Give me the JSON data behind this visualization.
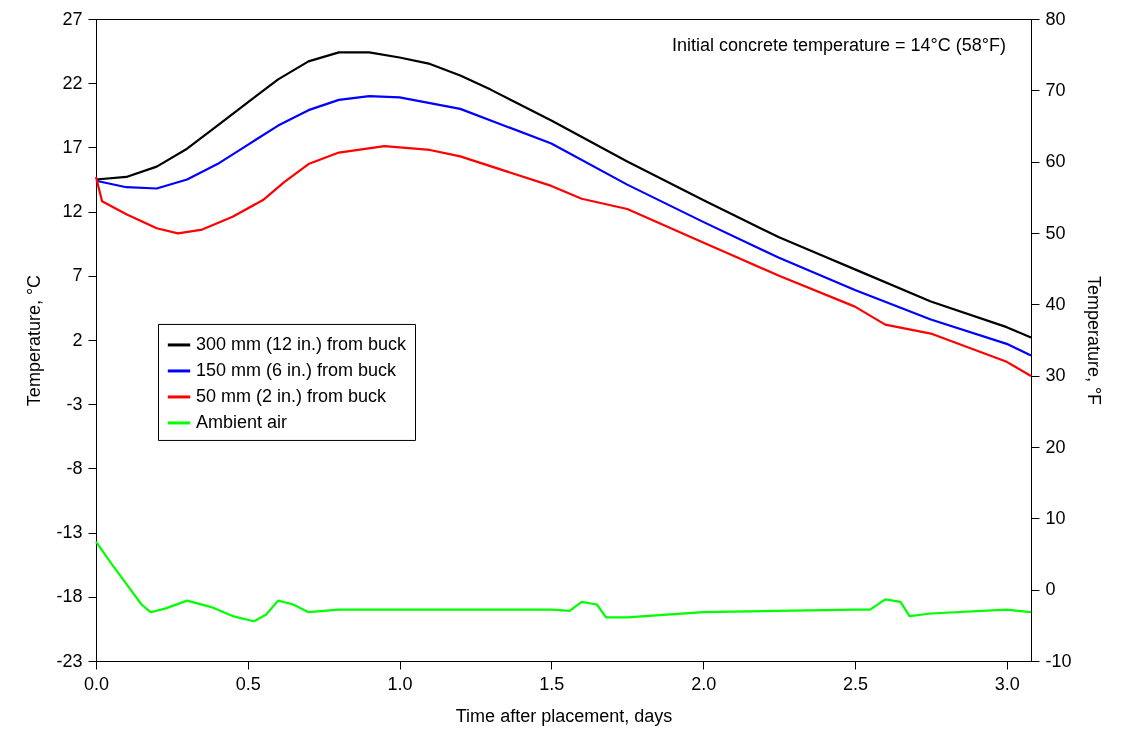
{
  "chart_data": {
    "type": "line",
    "xlabel": "Time after placement, days",
    "ylabel": "Temperature, °C",
    "y2label": "Temperature, °F",
    "annotations": [
      "Initial concrete temperature = 14°C (58°F)"
    ],
    "xlim": [
      0,
      3.08
    ],
    "xticks": [
      {
        "value": 0,
        "label": "0.0"
      },
      {
        "value": 0.5,
        "label": "0.5"
      },
      {
        "value": 1,
        "label": "1.0"
      },
      {
        "value": 1.5,
        "label": "1.5"
      },
      {
        "value": 2,
        "label": "2.0"
      },
      {
        "value": 2.5,
        "label": "2.5"
      },
      {
        "value": 3,
        "label": "3.0"
      }
    ],
    "ylim": [
      -23,
      27
    ],
    "yticks": [
      -23,
      -18,
      -13,
      -8,
      -3,
      2,
      7,
      12,
      17,
      22,
      27
    ],
    "y2lim": [
      -10,
      80
    ],
    "y2ticks": [
      -10,
      0,
      10,
      20,
      30,
      40,
      50,
      60,
      70,
      80
    ],
    "grid": false,
    "legend": "left",
    "line_style": "solid",
    "series": [
      {
        "name": "300 mm (12 in.) from buck",
        "color": "#000000",
        "x": [
          0,
          0.1,
          0.2,
          0.3,
          0.4,
          0.5,
          0.6,
          0.7,
          0.8,
          0.9,
          1.0,
          1.1,
          1.2,
          1.3,
          1.5,
          1.75,
          2.0,
          2.25,
          2.5,
          2.75,
          3.0,
          3.08
        ],
        "values": [
          14.5,
          14.7,
          15.5,
          16.9,
          18.7,
          20.5,
          22.3,
          23.7,
          24.4,
          24.4,
          24.0,
          23.5,
          22.6,
          21.5,
          19.1,
          15.9,
          12.9,
          10.0,
          7.5,
          5.0,
          3.0,
          2.2
        ]
      },
      {
        "name": "150 mm (6 in.) from buck",
        "color": "#0000ff",
        "x": [
          0,
          0.1,
          0.2,
          0.3,
          0.4,
          0.5,
          0.6,
          0.7,
          0.8,
          0.9,
          1.0,
          1.2,
          1.5,
          1.75,
          2.0,
          2.25,
          2.5,
          2.75,
          3.0,
          3.08
        ],
        "values": [
          14.4,
          13.9,
          13.8,
          14.5,
          15.7,
          17.2,
          18.7,
          19.9,
          20.7,
          21.0,
          20.9,
          20.0,
          17.3,
          14.1,
          11.2,
          8.4,
          5.9,
          3.6,
          1.7,
          0.8
        ]
      },
      {
        "name": "50 mm (2 in.) from buck",
        "color": "#ff0000",
        "x": [
          0,
          0.02,
          0.1,
          0.2,
          0.27,
          0.35,
          0.45,
          0.55,
          0.62,
          0.7,
          0.8,
          0.95,
          1.1,
          1.2,
          1.5,
          1.6,
          1.75,
          2.0,
          2.25,
          2.5,
          2.6,
          2.75,
          3.0,
          3.08
        ],
        "values": [
          14.7,
          12.8,
          11.8,
          10.7,
          10.3,
          10.6,
          11.6,
          12.9,
          14.3,
          15.7,
          16.6,
          17.1,
          16.8,
          16.3,
          14.0,
          13.0,
          12.2,
          9.6,
          7.0,
          4.6,
          3.2,
          2.5,
          0.3,
          -0.8
        ]
      },
      {
        "name": "Ambient air",
        "color": "#00ff00",
        "x": [
          0,
          0.05,
          0.1,
          0.15,
          0.18,
          0.23,
          0.3,
          0.38,
          0.45,
          0.52,
          0.56,
          0.6,
          0.65,
          0.7,
          0.8,
          1.0,
          1.5,
          1.56,
          1.6,
          1.65,
          1.68,
          1.75,
          2.0,
          2.5,
          2.55,
          2.6,
          2.65,
          2.68,
          2.75,
          3.0,
          3.08
        ],
        "values": [
          -13.7,
          -15.4,
          -17.0,
          -18.6,
          -19.2,
          -18.9,
          -18.3,
          -18.8,
          -19.5,
          -19.9,
          -19.4,
          -18.3,
          -18.6,
          -19.2,
          -19.0,
          -19.0,
          -19.0,
          -19.1,
          -18.4,
          -18.6,
          -19.6,
          -19.6,
          -19.2,
          -19.0,
          -19.0,
          -18.2,
          -18.4,
          -19.5,
          -19.3,
          -19.0,
          -19.2
        ]
      }
    ]
  }
}
